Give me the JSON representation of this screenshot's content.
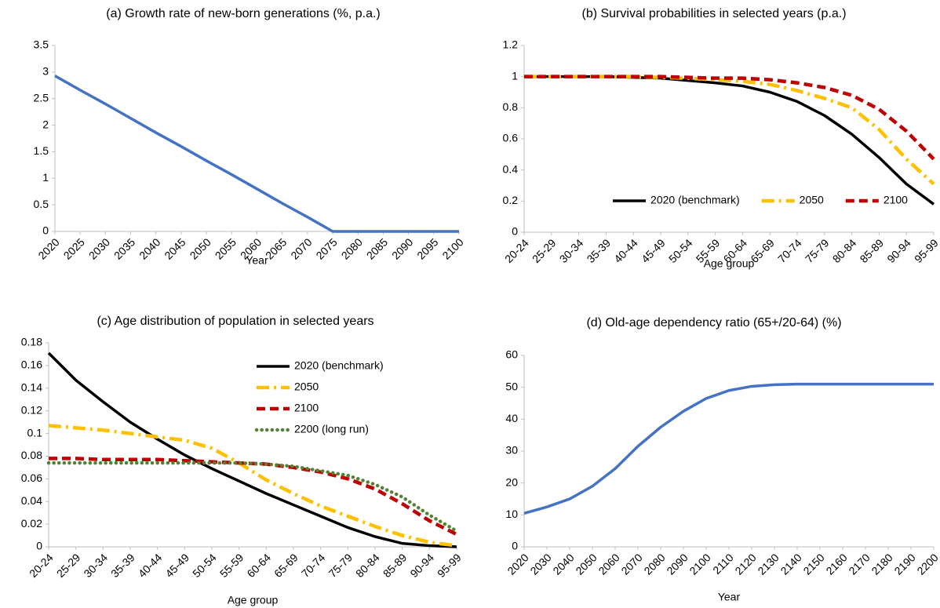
{
  "chart_data": [
    {
      "type": "line",
      "title": "(a) Growth rate of new-born generations (%, p.a.)",
      "x_label": "Year",
      "x": [
        2020,
        2025,
        2030,
        2035,
        2040,
        2045,
        2050,
        2055,
        2060,
        2065,
        2070,
        2075,
        2080,
        2085,
        2090,
        2095,
        2100
      ],
      "xlim": [
        2020,
        2100
      ],
      "xticks": [
        2020,
        2025,
        2030,
        2035,
        2040,
        2045,
        2050,
        2055,
        2060,
        2065,
        2070,
        2075,
        2080,
        2085,
        2090,
        2095,
        2100
      ],
      "ylim": [
        0,
        3.5
      ],
      "yticks": [
        0,
        0.5,
        1,
        1.5,
        2,
        2.5,
        3,
        3.5
      ],
      "series": [
        {
          "color": "#4472c4",
          "style": "solid",
          "values": [
            2.93,
            2.66,
            2.4,
            2.13,
            1.86,
            1.6,
            1.33,
            1.07,
            0.8,
            0.53,
            0.27,
            0,
            0,
            0,
            0,
            0,
            0
          ]
        }
      ]
    },
    {
      "type": "line",
      "title": "(b) Survival probabilities in selected years (p.a.)",
      "x_label": "Age group",
      "categories": [
        "20-24",
        "25-29",
        "30-34",
        "35-39",
        "40-44",
        "45-49",
        "50-54",
        "55-59",
        "60-64",
        "65-69",
        "70-74",
        "75-79",
        "80-84",
        "85-89",
        "90-94",
        "95-99"
      ],
      "ylim": [
        0,
        1.2
      ],
      "yticks": [
        0,
        0.2,
        0.4,
        0.6,
        0.8,
        1,
        1.2
      ],
      "legend": "lower center",
      "series": [
        {
          "name": "2020 (benchmark)",
          "color": "#000000",
          "style": "solid",
          "values": [
            1,
            1,
            1,
            1,
            0.995,
            0.99,
            0.975,
            0.96,
            0.94,
            0.9,
            0.84,
            0.75,
            0.63,
            0.48,
            0.31,
            0.18
          ]
        },
        {
          "name": "2050",
          "color": "#ffc000",
          "style": "dash-dot",
          "values": [
            1,
            1,
            1,
            1,
            1,
            0.995,
            0.99,
            0.98,
            0.97,
            0.95,
            0.91,
            0.86,
            0.8,
            0.66,
            0.47,
            0.31
          ]
        },
        {
          "name": "2100",
          "color": "#c00000",
          "style": "dashed",
          "values": [
            1,
            1,
            1,
            1,
            1,
            1,
            0.995,
            0.99,
            0.99,
            0.98,
            0.96,
            0.93,
            0.88,
            0.79,
            0.65,
            0.47
          ]
        }
      ]
    },
    {
      "type": "line",
      "title": "(c) Age distribution of population in selected years",
      "x_label": "Age group",
      "categories": [
        "20-24",
        "25-29",
        "30-34",
        "35-39",
        "40-44",
        "45-49",
        "50-54",
        "55-59",
        "60-64",
        "65-69",
        "70-74",
        "75-79",
        "80-84",
        "85-89",
        "90-94",
        "95-99"
      ],
      "ylim": [
        0,
        0.18
      ],
      "yticks": [
        0,
        0.02,
        0.04,
        0.06,
        0.08,
        0.1,
        0.12,
        0.14,
        0.16,
        0.18
      ],
      "legend": "upper right",
      "series": [
        {
          "name": "2020 (benchmark)",
          "color": "#000000",
          "style": "solid",
          "values": [
            0.171,
            0.147,
            0.128,
            0.11,
            0.095,
            0.081,
            0.069,
            0.058,
            0.047,
            0.037,
            0.027,
            0.017,
            0.009,
            0.003,
            0.001,
            0
          ]
        },
        {
          "name": "2050",
          "color": "#ffc000",
          "style": "dash-dot",
          "values": [
            0.107,
            0.105,
            0.103,
            0.1,
            0.097,
            0.094,
            0.087,
            0.074,
            0.059,
            0.047,
            0.036,
            0.027,
            0.018,
            0.01,
            0.004,
            0.001
          ]
        },
        {
          "name": "2100",
          "color": "#c00000",
          "style": "dashed",
          "values": [
            0.078,
            0.078,
            0.077,
            0.077,
            0.077,
            0.076,
            0.075,
            0.074,
            0.073,
            0.07,
            0.066,
            0.06,
            0.051,
            0.038,
            0.023,
            0.011
          ]
        },
        {
          "name": "2200 (long run)",
          "color": "#548235",
          "style": "dotted",
          "values": [
            0.074,
            0.074,
            0.074,
            0.074,
            0.074,
            0.074,
            0.074,
            0.074,
            0.073,
            0.071,
            0.067,
            0.063,
            0.055,
            0.044,
            0.028,
            0.014
          ]
        }
      ]
    },
    {
      "type": "line",
      "title": "(d) Old-age dependency ratio (65+/20-64) (%)",
      "x_label": "Year",
      "x": [
        2020,
        2030,
        2040,
        2050,
        2060,
        2070,
        2080,
        2090,
        2100,
        2110,
        2120,
        2130,
        2140,
        2150,
        2160,
        2170,
        2180,
        2190,
        2200
      ],
      "xlim": [
        2020,
        2200
      ],
      "xticks": [
        2020,
        2030,
        2040,
        2050,
        2060,
        2070,
        2080,
        2090,
        2100,
        2110,
        2120,
        2130,
        2140,
        2150,
        2160,
        2170,
        2180,
        2190,
        2200
      ],
      "ylim": [
        0,
        60
      ],
      "yticks": [
        0,
        10,
        20,
        30,
        40,
        50,
        60
      ],
      "series": [
        {
          "color": "#4472c4",
          "style": "solid",
          "values": [
            10.5,
            12.5,
            15,
            19,
            24.5,
            31.5,
            37.5,
            42.5,
            46.5,
            49,
            50.3,
            50.8,
            51,
            51,
            51,
            51,
            51,
            51,
            51
          ]
        }
      ]
    }
  ]
}
